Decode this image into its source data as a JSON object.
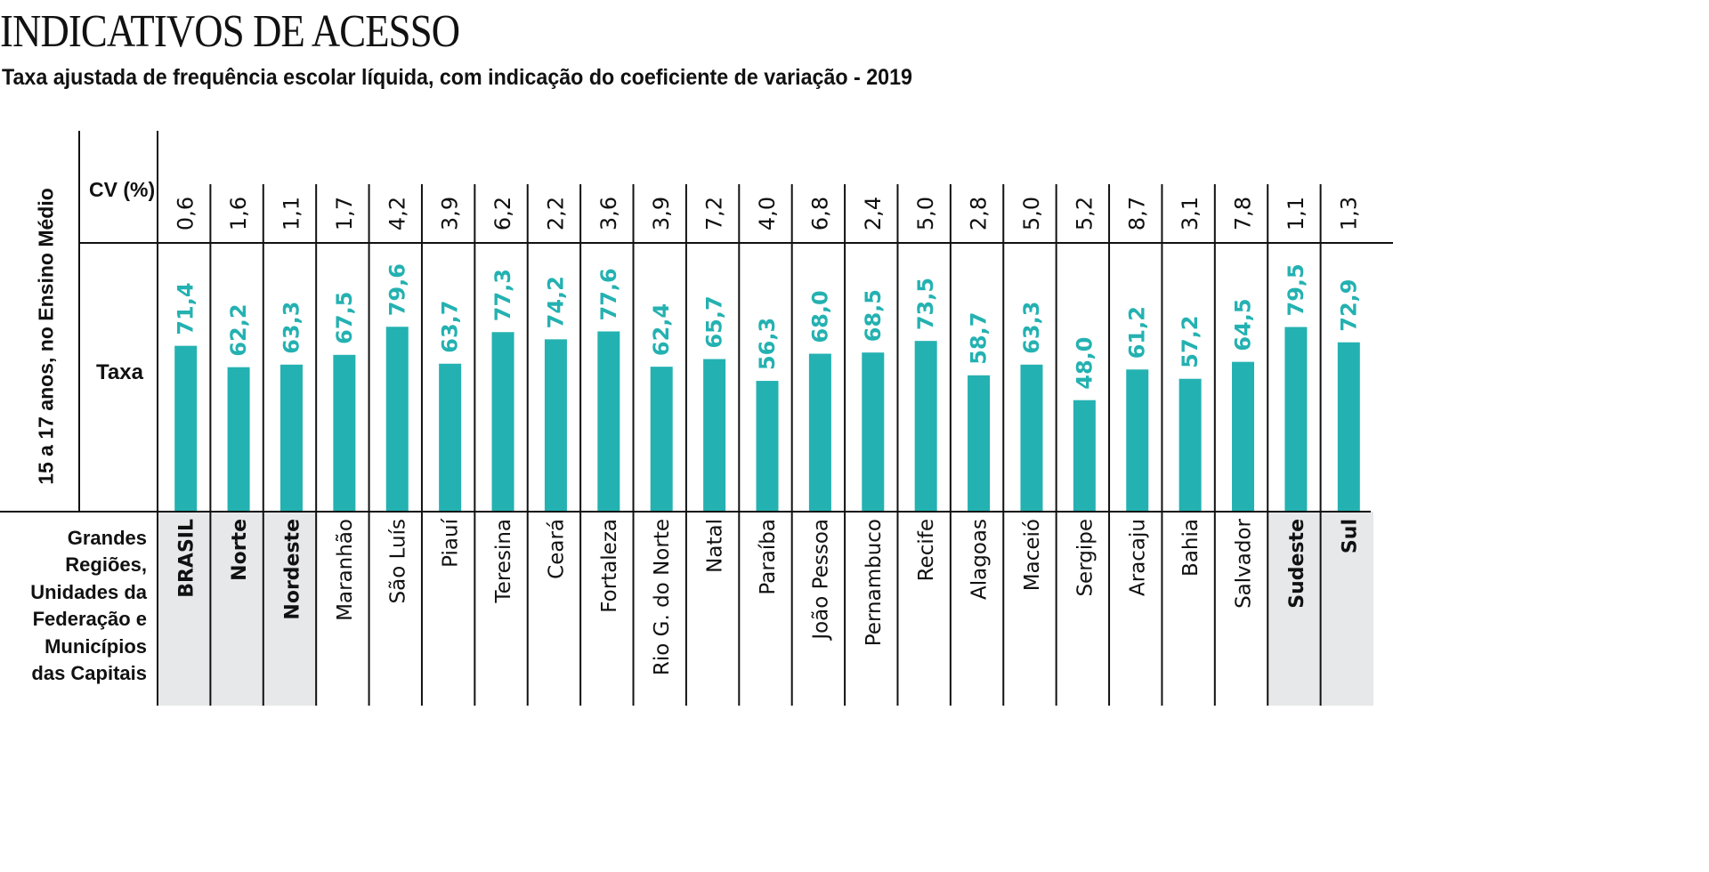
{
  "header": {
    "title": "INDICATIVOS DE ACESSO",
    "subtitle": "Taxa ajustada de frequência escolar líquida, com indicação do coeficiente de variação - 2019"
  },
  "row_labels": {
    "group_axis": "15 a 17 anos, no Ensino Médio",
    "cv": "CV (%)",
    "taxa": "Taxa",
    "category_axis": "Grandes Regiões, Unidades da Federação e Municípios das Capitais"
  },
  "category_axis_lines": [
    "Grandes",
    "Regiões,",
    "Unidades da",
    "Federação e",
    "Municípios",
    "das Capitais"
  ],
  "colors": {
    "bar": "#24b1b1",
    "value_text": "#24b1b1",
    "highlight_bg": "#e6e8e9",
    "line": "#111111"
  },
  "chart_data": {
    "type": "bar",
    "title": "Taxa ajustada de frequência escolar líquida, com indicação do coeficiente de variação - 2019",
    "xlabel": "Grandes Regiões, Unidades da Federação e Municípios das Capitais",
    "ylabel": "15 a 17 anos, no Ensino Médio",
    "ylim": [
      0,
      80
    ],
    "grid": false,
    "categories": [
      "BRASIL",
      "Norte",
      "Nordeste",
      "Maranhão",
      "São Luís",
      "Piauí",
      "Teresina",
      "Ceará",
      "Fortaleza",
      "Rio G. do Norte",
      "Natal",
      "Paraíba",
      "João Pessoa",
      "Pernambuco",
      "Recife",
      "Alagoas",
      "Maceió",
      "Sergipe",
      "Aracaju",
      "Bahia",
      "Salvador",
      "Sudeste",
      "Sul"
    ],
    "highlighted": [
      true,
      true,
      true,
      false,
      false,
      false,
      false,
      false,
      false,
      false,
      false,
      false,
      false,
      false,
      false,
      false,
      false,
      false,
      false,
      false,
      false,
      true,
      true
    ],
    "series": [
      {
        "name": "Taxa",
        "values": [
          71.4,
          62.2,
          63.3,
          67.5,
          79.6,
          63.7,
          77.3,
          74.2,
          77.6,
          62.4,
          65.7,
          56.3,
          68.0,
          68.5,
          73.5,
          58.7,
          63.3,
          48.0,
          61.2,
          57.2,
          64.5,
          79.5,
          72.9
        ],
        "labels": [
          "71,4",
          "62,2",
          "63,3",
          "67,5",
          "79,6",
          "63,7",
          "77,3",
          "74,2",
          "77,6",
          "62,4",
          "65,7",
          "56,3",
          "68,0",
          "68,5",
          "73,5",
          "58,7",
          "63,3",
          "48,0",
          "61,2",
          "57,2",
          "64,5",
          "79,5",
          "72,9"
        ]
      },
      {
        "name": "CV (%)",
        "values": [
          0.6,
          1.6,
          1.1,
          1.7,
          4.2,
          3.9,
          6.2,
          2.2,
          3.6,
          3.9,
          7.2,
          4.0,
          6.8,
          2.4,
          5.0,
          2.8,
          5.0,
          5.2,
          8.7,
          3.1,
          7.8,
          1.1,
          1.3
        ],
        "labels": [
          "0,6",
          "1,6",
          "1,1",
          "1,7",
          "4,2",
          "3,9",
          "6,2",
          "2,2",
          "3,6",
          "3,9",
          "7,2",
          "4,0",
          "6,8",
          "2,4",
          "5,0",
          "2,8",
          "5,0",
          "5,2",
          "8,7",
          "3,1",
          "7,8",
          "1,1",
          "1,3"
        ]
      }
    ]
  }
}
